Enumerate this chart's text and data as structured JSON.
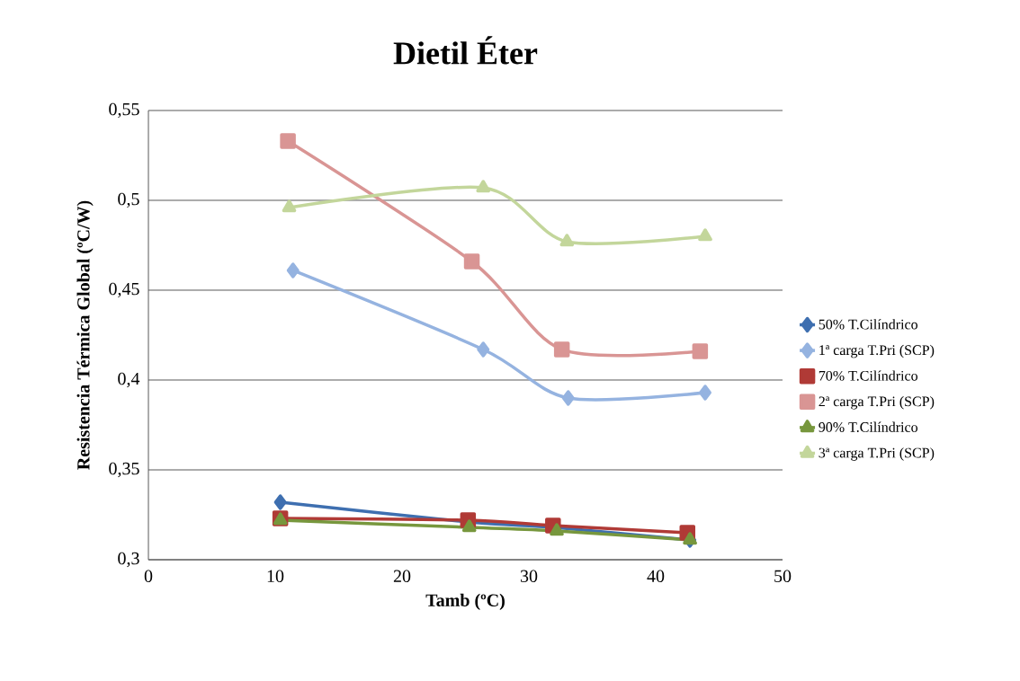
{
  "chart_data": {
    "type": "line",
    "title": "Dietil Éter",
    "xlabel": "Tamb (ºC)",
    "ylabel": "Resistencia Térmica Global (ºC/W)",
    "xlim": [
      0,
      50
    ],
    "xticks": [
      0,
      10,
      20,
      30,
      40,
      50
    ],
    "ylim": [
      0.3,
      0.55
    ],
    "yticks": [
      {
        "value": 0.3,
        "label": "0,3"
      },
      {
        "value": 0.35,
        "label": "0,35"
      },
      {
        "value": 0.4,
        "label": "0,4"
      },
      {
        "value": 0.45,
        "label": "0,45"
      },
      {
        "value": 0.5,
        "label": "0,5"
      },
      {
        "value": 0.55,
        "label": "0,55"
      }
    ],
    "grid": "y",
    "legend": "right",
    "line_style": "solid",
    "series": [
      {
        "name": "50% T.Cilíndrico",
        "color": "#3e6fb0",
        "marker": "diamond",
        "x": [
          10.4,
          25.2,
          32.0,
          42.7
        ],
        "values": [
          0.332,
          0.321,
          0.318,
          0.311
        ]
      },
      {
        "name": "1ª carga T.Pri (SCP)",
        "color": "#95b3e0",
        "marker": "diamond",
        "x": [
          11.4,
          26.4,
          33.1,
          43.9
        ],
        "values": [
          0.461,
          0.417,
          0.39,
          0.393
        ]
      },
      {
        "name": "70% T.Cilíndrico",
        "color": "#b03a36",
        "marker": "square",
        "x": [
          10.4,
          25.2,
          31.9,
          42.5
        ],
        "values": [
          0.323,
          0.322,
          0.319,
          0.315
        ]
      },
      {
        "name": "2ª carga T.Pri (SCP)",
        "color": "#d99594",
        "marker": "square",
        "x": [
          11.0,
          25.5,
          32.6,
          43.5
        ],
        "values": [
          0.533,
          0.466,
          0.417,
          0.416
        ]
      },
      {
        "name": "90% T.Cilíndrico",
        "color": "#77973d",
        "marker": "triangle",
        "x": [
          10.4,
          25.3,
          32.2,
          42.7
        ],
        "values": [
          0.322,
          0.318,
          0.316,
          0.311
        ]
      },
      {
        "name": "3ª carga T.Pri (SCP)",
        "color": "#c3d69b",
        "marker": "triangle",
        "x": [
          11.1,
          26.4,
          33.0,
          43.9
        ],
        "values": [
          0.496,
          0.507,
          0.477,
          0.48
        ]
      }
    ]
  }
}
